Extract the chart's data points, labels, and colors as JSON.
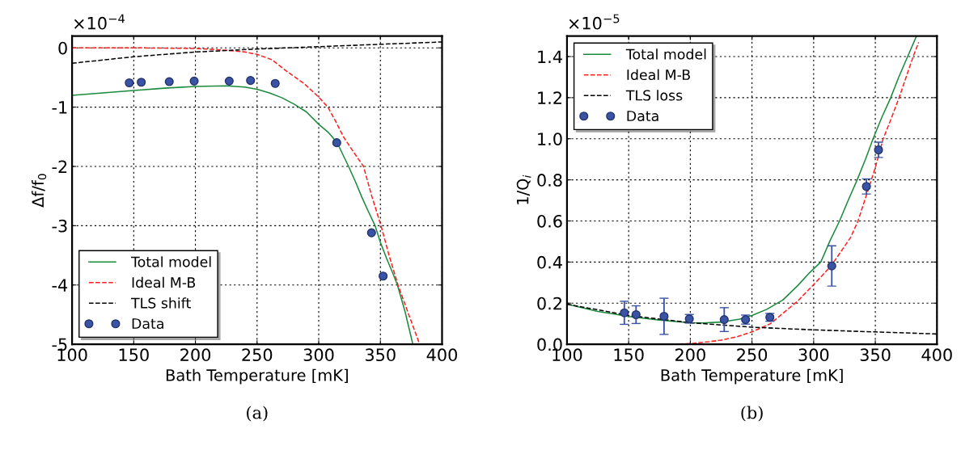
{
  "chart_data": [
    {
      "type": "line",
      "xlabel": "Bath Temperature [mK]",
      "ylabel": "Δf/f$_{0}$",
      "xlim": [
        100,
        400
      ],
      "ylim": [
        -5,
        0.2
      ],
      "xticks": [
        100,
        150,
        200,
        250,
        300,
        350,
        400
      ],
      "yticks": [
        -5,
        -4,
        -3,
        -2,
        -1,
        0
      ],
      "grid": true,
      "legend": "bottom left",
      "annotations": [
        "×10$^{−4}$",
        "(a)"
      ],
      "series": [
        {
          "name": "Total model",
          "type": "line",
          "color": "#1a8a3c",
          "line_style": "solid",
          "x": [
            100,
            125,
            150,
            175,
            200,
            225,
            240,
            250,
            260,
            270,
            280,
            290,
            300,
            308,
            315,
            320,
            324.2,
            330,
            335,
            340,
            345.7,
            350,
            355,
            360,
            363.8,
            370,
            376.3
          ],
          "values": [
            -0.8,
            -0.76,
            -0.72,
            -0.68,
            -0.65,
            -0.64,
            -0.66,
            -0.7,
            -0.76,
            -0.84,
            -0.95,
            -1.08,
            -1.29,
            -1.43,
            -1.6,
            -1.82,
            -2.0,
            -2.27,
            -2.52,
            -2.75,
            -3.0,
            -3.28,
            -3.55,
            -3.8,
            -4.0,
            -4.45,
            -5.0
          ]
        },
        {
          "name": "Ideal M-B",
          "type": "line",
          "color": "#ff2020",
          "line_style": "dashed",
          "x": [
            100,
            150,
            200,
            225,
            240,
            250,
            262,
            275,
            288,
            300,
            307.4,
            314,
            320,
            328,
            336.3,
            343,
            350.5,
            357,
            364.3,
            373,
            381.8
          ],
          "values": [
            0,
            0,
            -0.01,
            -0.04,
            -0.07,
            -0.11,
            -0.2,
            -0.41,
            -0.6,
            -0.83,
            -1.0,
            -1.25,
            -1.5,
            -1.75,
            -2.0,
            -2.5,
            -3.0,
            -3.5,
            -4.0,
            -4.5,
            -5.0
          ]
        },
        {
          "name": "TLS shift",
          "type": "line",
          "color": "#000000",
          "line_style": "dashed",
          "x": [
            100,
            150,
            200,
            250,
            300,
            350,
            400
          ],
          "values": [
            -0.26,
            -0.15,
            -0.07,
            -0.02,
            0.02,
            0.06,
            0.1
          ]
        },
        {
          "name": "Data",
          "type": "scatter",
          "color": "#3a53a4",
          "marker": "circle",
          "x": [
            146.4,
            156.1,
            178.8,
            199,
            227.4,
            244.7,
            264.7,
            314.6,
            342.8,
            352.2
          ],
          "values": [
            -0.59,
            -0.58,
            -0.57,
            -0.56,
            -0.56,
            -0.55,
            -0.6,
            -1.6,
            -3.12,
            -3.85
          ]
        }
      ]
    },
    {
      "type": "line",
      "xlabel": "Bath Temperature [mK]",
      "ylabel": "1/Q$_{i}$",
      "xlim": [
        100,
        400
      ],
      "ylim": [
        0,
        1.5
      ],
      "xticks": [
        100,
        150,
        200,
        250,
        300,
        350,
        400
      ],
      "yticks": [
        {
          "value": 0,
          "label": "0.0"
        },
        0.2,
        0.4,
        0.6,
        0.8,
        {
          "value": 1,
          "label": "1.0"
        },
        1.2,
        1.4
      ],
      "grid": true,
      "legend": "top left",
      "annotations": [
        "×10$^{−5}$",
        "(b)"
      ],
      "series": [
        {
          "name": "Total model",
          "type": "line",
          "color": "#1a8a3c",
          "line_style": "solid",
          "x": [
            100,
            125,
            150,
            175,
            200,
            210,
            225,
            240,
            250,
            262,
            275,
            287,
            297,
            305.8,
            313,
            321,
            328,
            335.3,
            342,
            348.2,
            355,
            362.5,
            369,
            376.2,
            383.4
          ],
          "values": [
            0.195,
            0.16,
            0.135,
            0.117,
            0.105,
            0.104,
            0.108,
            0.122,
            0.14,
            0.17,
            0.215,
            0.285,
            0.35,
            0.4,
            0.5,
            0.6,
            0.7,
            0.8,
            0.9,
            1.0,
            1.1,
            1.2,
            1.3,
            1.4,
            1.5
          ]
        },
        {
          "name": "Ideal M-B",
          "type": "line",
          "color": "#ff2020",
          "line_style": "dashed",
          "x": [
            180,
            200,
            215,
            225,
            238,
            250,
            265,
            275,
            287,
            300,
            314,
            322,
            330,
            336,
            343,
            350,
            356.4,
            363,
            369.3,
            375,
            380.7,
            385.2
          ],
          "values": [
            0,
            0.003,
            0.012,
            0.02,
            0.037,
            0.06,
            0.1,
            0.15,
            0.21,
            0.29,
            0.38,
            0.45,
            0.52,
            0.6,
            0.73,
            0.86,
            1.0,
            1.1,
            1.2,
            1.3,
            1.4,
            1.47
          ]
        },
        {
          "name": "TLS loss",
          "type": "line",
          "color": "#000000",
          "line_style": "dashed",
          "x": [
            100,
            150,
            200,
            250,
            300,
            350,
            400
          ],
          "values": [
            0.195,
            0.14,
            0.105,
            0.083,
            0.07,
            0.06,
            0.05
          ]
        },
        {
          "name": "Data",
          "type": "scatter",
          "color": "#3a53a4",
          "marker": "circle",
          "x": [
            146.5,
            156,
            178.7,
            199.2,
            227.5,
            244.8,
            264.5,
            314.7,
            342.8,
            352.6
          ],
          "values": [
            0.153,
            0.144,
            0.136,
            0.124,
            0.12,
            0.12,
            0.131,
            0.381,
            0.768,
            0.946
          ],
          "errors": [
            0.056,
            0.043,
            0.088,
            0.021,
            0.058,
            0.022,
            0.019,
            0.098,
            0.037,
            0.037
          ]
        }
      ]
    }
  ]
}
